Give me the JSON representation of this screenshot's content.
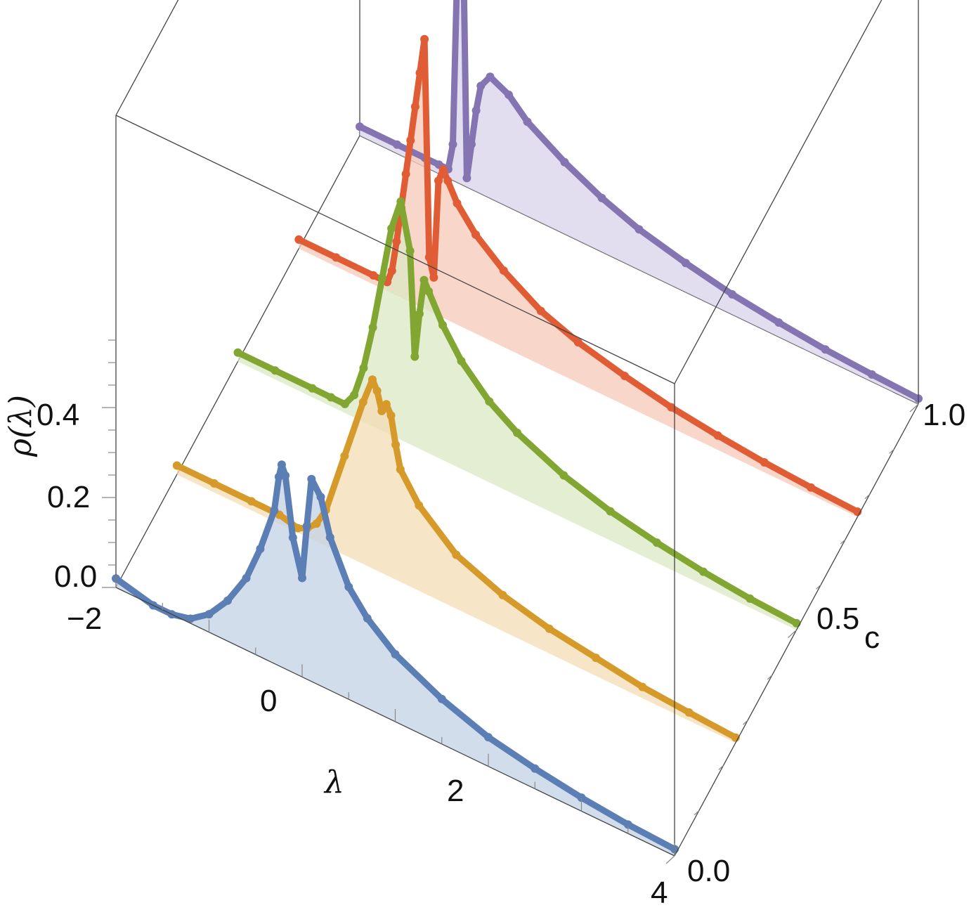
{
  "chart_data": {
    "type": "line",
    "dimensions": "3d",
    "xlabel": "λ",
    "ylabel": "c",
    "zlabel": "ρ(λ)",
    "xlim": [
      -2,
      4
    ],
    "ylim": [
      0,
      1
    ],
    "zlim": [
      0,
      0.55
    ],
    "x_ticks": [
      "−2",
      "0",
      "2",
      "4"
    ],
    "y_ticks": [
      "0.0",
      "0.5",
      "1.0"
    ],
    "z_ticks": [
      "0.0",
      "0.2",
      "0.4"
    ],
    "series": [
      {
        "c": 0.0,
        "color": "#5b7fb5",
        "fill": "#c3d1e6",
        "x": [
          -2.0,
          -1.6,
          -1.4,
          -1.2,
          -1.0,
          -0.8,
          -0.6,
          -0.45,
          -0.3,
          -0.25,
          -0.22,
          -0.18,
          -0.1,
          0.0,
          0.05,
          0.1,
          0.2,
          0.3,
          0.5,
          0.7,
          1.0,
          1.5,
          2.0,
          2.5,
          3.0,
          3.5,
          4.0
        ],
        "z": [
          0.02,
          0.0,
          0.0,
          0.01,
          0.04,
          0.09,
          0.16,
          0.24,
          0.34,
          0.42,
          0.45,
          0.43,
          0.3,
          0.22,
          0.34,
          0.45,
          0.42,
          0.34,
          0.25,
          0.2,
          0.15,
          0.1,
          0.065,
          0.045,
          0.03,
          0.02,
          0.015
        ]
      },
      {
        "c": 0.25,
        "color": "#d59a2a",
        "fill": "#f4dcb4",
        "x": [
          -2.0,
          -1.6,
          -1.2,
          -0.9,
          -0.7,
          -0.6,
          -0.5,
          -0.4,
          -0.2,
          0.0,
          0.1,
          0.15,
          0.2,
          0.25,
          0.3,
          0.35,
          0.4,
          0.6,
          1.0,
          1.5,
          2.0,
          2.5,
          3.0,
          3.5,
          4.0
        ],
        "z": [
          0.02,
          0.02,
          0.02,
          0.02,
          0.01,
          0.02,
          0.04,
          0.08,
          0.22,
          0.36,
          0.42,
          0.4,
          0.36,
          0.38,
          0.36,
          0.3,
          0.25,
          0.19,
          0.12,
          0.08,
          0.055,
          0.04,
          0.025,
          0.018,
          0.012
        ]
      },
      {
        "c": 0.5,
        "color": "#81a631",
        "fill": "#dbe8c3",
        "x": [
          -2.0,
          -1.6,
          -1.2,
          -1.0,
          -0.85,
          -0.75,
          -0.65,
          -0.55,
          -0.45,
          -0.35,
          -0.25,
          -0.15,
          -0.1,
          -0.05,
          0.0,
          0.05,
          0.2,
          0.4,
          0.7,
          1.0,
          1.5,
          2.0,
          2.5,
          3.0,
          3.5,
          4.0
        ],
        "z": [
          0.02,
          0.02,
          0.02,
          0.02,
          0.02,
          0.05,
          0.12,
          0.22,
          0.34,
          0.46,
          0.53,
          0.43,
          0.2,
          0.3,
          0.38,
          0.36,
          0.3,
          0.24,
          0.18,
          0.14,
          0.095,
          0.065,
          0.045,
          0.03,
          0.02,
          0.015
        ]
      },
      {
        "c": 0.75,
        "color": "#e05c34",
        "fill": "#f6c8b8",
        "x": [
          -2.0,
          -1.6,
          -1.2,
          -1.05,
          -1.0,
          -0.95,
          -0.9,
          -0.85,
          -0.8,
          -0.75,
          -0.7,
          -0.65,
          -0.6,
          -0.55,
          -0.5,
          -0.45,
          -0.4,
          -0.3,
          -0.1,
          0.2,
          0.6,
          1.0,
          1.5,
          2.0,
          2.5,
          3.0,
          3.5,
          4.0
        ],
        "z": [
          0.02,
          0.02,
          0.02,
          0.02,
          0.05,
          0.12,
          0.2,
          0.28,
          0.36,
          0.44,
          0.52,
          0.6,
          0.12,
          0.08,
          0.3,
          0.33,
          0.31,
          0.27,
          0.22,
          0.17,
          0.12,
          0.09,
          0.065,
          0.045,
          0.032,
          0.022,
          0.016,
          0.012
        ]
      },
      {
        "c": 1.0,
        "color": "#8474b2",
        "fill": "#d8d3e9",
        "x": [
          -2.0,
          -1.6,
          -1.3,
          -1.15,
          -1.05,
          -1.0,
          -0.95,
          -0.9,
          -0.85,
          -0.8,
          -0.75,
          -0.7,
          -0.6,
          -0.4,
          -0.2,
          0.2,
          0.6,
          1.0,
          1.5,
          2.0,
          2.5,
          3.0,
          3.5,
          4.0
        ],
        "z": [
          0.02,
          0.02,
          0.02,
          0.02,
          0.02,
          0.08,
          0.5,
          0.68,
          0.02,
          0.1,
          0.18,
          0.24,
          0.27,
          0.25,
          0.21,
          0.16,
          0.12,
          0.09,
          0.065,
          0.045,
          0.032,
          0.022,
          0.016,
          0.012
        ]
      }
    ]
  }
}
